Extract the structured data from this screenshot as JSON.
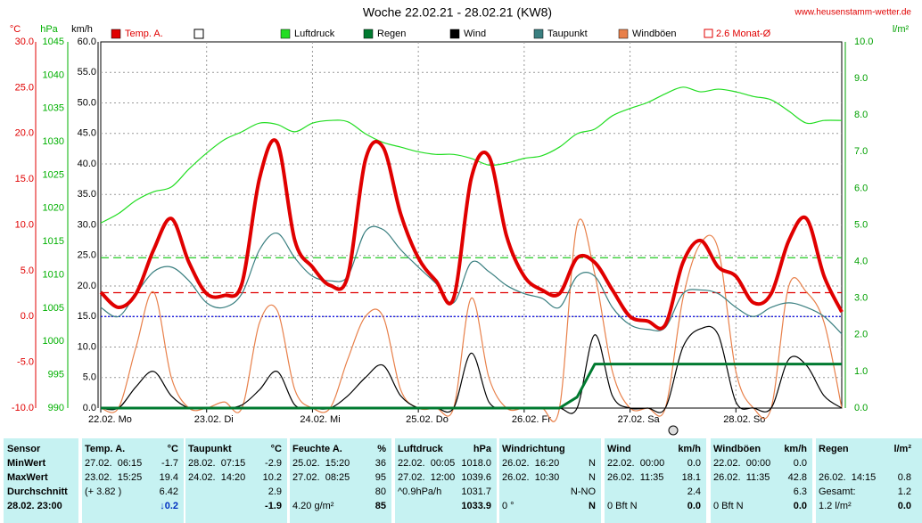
{
  "chart_data": {
    "type": "line",
    "title": "Woche 22.02.21 - 28.02.21 (KW8)",
    "source": "www.heusenstamm-wetter.de",
    "xlim": [
      0,
      168
    ],
    "xticks": [
      {
        "value": 0,
        "label": "22.02. Mo"
      },
      {
        "value": 24,
        "label": "23.02. Di"
      },
      {
        "value": 48,
        "label": "24.02. Mi"
      },
      {
        "value": 72,
        "label": "25.02. Do"
      },
      {
        "value": 96,
        "label": "26.02. Fr"
      },
      {
        "value": 120,
        "label": "27.02. Sa"
      },
      {
        "value": 144,
        "label": "28.02. So"
      }
    ],
    "grid": true,
    "axes": {
      "temp": {
        "label": "°C",
        "color": "#e00000",
        "lim": [
          -10,
          30
        ],
        "ticks": [
          {
            "value": 30,
            "label": "30.0"
          },
          {
            "value": 25,
            "label": "25.0"
          },
          {
            "value": 20,
            "label": "20.0"
          },
          {
            "value": 15,
            "label": "15.0"
          },
          {
            "value": 10,
            "label": "10.0"
          },
          {
            "value": 5,
            "label": "5.0"
          },
          {
            "value": 0,
            "label": "0.0"
          },
          {
            "value": -5,
            "label": "-5.0"
          },
          {
            "value": -10,
            "label": "-10.0"
          }
        ]
      },
      "pressure": {
        "label": "hPa",
        "color": "#00b000",
        "lim": [
          990,
          1045
        ],
        "ticks": [
          1045,
          1040,
          1035,
          1030,
          1025,
          1020,
          1015,
          1010,
          1005,
          1000,
          995,
          990
        ]
      },
      "wind": {
        "label": "km/h",
        "color": "#000000",
        "lim": [
          0,
          60
        ],
        "ticks": [
          {
            "value": 60,
            "label": "60.0"
          },
          {
            "value": 55,
            "label": "55.0"
          },
          {
            "value": 50,
            "label": "50.0"
          },
          {
            "value": 45,
            "label": "45.0"
          },
          {
            "value": 40,
            "label": "40.0"
          },
          {
            "value": 35,
            "label": "35.0"
          },
          {
            "value": 30,
            "label": "30.0"
          },
          {
            "value": 25,
            "label": "25.0"
          },
          {
            "value": 20,
            "label": "20.0"
          },
          {
            "value": 15,
            "label": "15.0"
          },
          {
            "value": 10,
            "label": "10.0"
          },
          {
            "value": 5,
            "label": "5.0"
          },
          {
            "value": 0,
            "label": "0.0"
          }
        ]
      },
      "rain": {
        "label": "l/m²",
        "color": "#00a000",
        "lim": [
          0,
          10
        ],
        "ticks": [
          {
            "value": 10,
            "label": "10.0"
          },
          {
            "value": 9,
            "label": "9.0"
          },
          {
            "value": 8,
            "label": "8.0"
          },
          {
            "value": 7,
            "label": "7.0"
          },
          {
            "value": 6,
            "label": "6.0"
          },
          {
            "value": 5,
            "label": "5.0"
          },
          {
            "value": 4,
            "label": "4.0"
          },
          {
            "value": 3,
            "label": "3.0"
          },
          {
            "value": 2,
            "label": "2.0"
          },
          {
            "value": 1,
            "label": "1.0"
          },
          {
            "value": 0,
            "label": "0.0"
          }
        ]
      }
    },
    "x": [
      0,
      4,
      8,
      12,
      16,
      20,
      24,
      28,
      32,
      36,
      40,
      44,
      48,
      52,
      56,
      60,
      64,
      68,
      72,
      76,
      80,
      84,
      88,
      92,
      96,
      100,
      104,
      108,
      112,
      116,
      120,
      124,
      128,
      132,
      136,
      140,
      144,
      148,
      152,
      156,
      160,
      164,
      168
    ],
    "series": [
      {
        "name": "Temp. A.",
        "color": "#e00000",
        "axis": "temp",
        "values": [
          2.65,
          1.0,
          2.5,
          7.3,
          10.7,
          5.9,
          2.5,
          2.3,
          3.6,
          15.1,
          19.0,
          8.3,
          5.4,
          3.4,
          4.4,
          17.1,
          18.5,
          11.2,
          6.4,
          3.9,
          2.0,
          15.1,
          17.5,
          8.8,
          4.4,
          2.9,
          2.5,
          6.4,
          5.9,
          2.9,
          0.0,
          -0.5,
          -0.9,
          5.9,
          8.3,
          5.4,
          4.4,
          1.5,
          2.5,
          8.3,
          10.7,
          4.4,
          0.5
        ]
      },
      {
        "name": "Luftdruck",
        "color": "#22dd22",
        "axis": "pressure",
        "values": [
          1017.8,
          1019.2,
          1021.2,
          1022.5,
          1023.2,
          1025.9,
          1028.3,
          1030.3,
          1031.5,
          1032.8,
          1032.6,
          1031.5,
          1032.8,
          1033.2,
          1033.0,
          1031.2,
          1029.9,
          1029.2,
          1028.5,
          1028.1,
          1028.1,
          1027.5,
          1026.5,
          1026.8,
          1027.5,
          1027.9,
          1029.2,
          1031.2,
          1031.9,
          1033.9,
          1035.0,
          1035.9,
          1037.2,
          1038.2,
          1037.5,
          1037.9,
          1037.5,
          1036.8,
          1036.3,
          1034.6,
          1032.8,
          1033.2,
          1033.2
        ]
      },
      {
        "name": "Regen",
        "color": "#007a30",
        "axis": "rain",
        "values": [
          0,
          0,
          0,
          0,
          0,
          0,
          0,
          0,
          0,
          0,
          0,
          0,
          0,
          0,
          0,
          0,
          0,
          0,
          0,
          0,
          0,
          0,
          0,
          0,
          0,
          0,
          0,
          0.3,
          1.2,
          1.2,
          1.2,
          1.2,
          1.2,
          1.2,
          1.2,
          1.2,
          1.2,
          1.2,
          1.2,
          1.2,
          1.2,
          1.2,
          1.2
        ]
      },
      {
        "name": "Wind",
        "color": "#000000",
        "axis": "wind",
        "values": [
          0,
          0,
          3.5,
          6,
          2,
          0,
          0,
          0,
          0.5,
          3,
          6,
          0.5,
          0,
          0,
          2,
          5,
          7,
          2,
          0,
          0,
          0,
          9,
          1,
          0,
          0,
          0,
          0,
          0,
          12,
          2,
          0,
          0,
          0,
          10,
          13,
          12,
          1,
          0,
          0,
          8,
          7,
          2,
          0
        ]
      },
      {
        "name": "Taupunkt",
        "color": "#3a7f80",
        "axis": "temp",
        "values": [
          1.0,
          0.0,
          2.5,
          4.9,
          5.4,
          3.9,
          1.5,
          1.0,
          2.5,
          7.3,
          9.1,
          6.4,
          4.4,
          3.9,
          4.4,
          9.3,
          9.5,
          7.3,
          5.4,
          3.6,
          1.5,
          5.9,
          4.9,
          3.4,
          2.5,
          2.0,
          1.0,
          4.4,
          4.4,
          1.0,
          -0.9,
          -1.4,
          -1.2,
          2.5,
          2.9,
          2.5,
          1.0,
          0.0,
          1.0,
          1.5,
          1.0,
          0.0,
          -1.9
        ]
      },
      {
        "name": "Windböen",
        "color": "#e8804a",
        "axis": "wind",
        "values": [
          0,
          0,
          10,
          19,
          5,
          0,
          0,
          1,
          0,
          14,
          16,
          3,
          0,
          0,
          8,
          15,
          15,
          3,
          0,
          0,
          0,
          18,
          5,
          0,
          0,
          0,
          0,
          30,
          22,
          6,
          0,
          0,
          0,
          18,
          27,
          26,
          6,
          0,
          0,
          20,
          19,
          14,
          0
        ]
      }
    ],
    "reference_lines": [
      {
        "label": "2.6 Monat-Ø",
        "value": 2.6,
        "axis": "temp",
        "color": "#e00000",
        "style": "dashed"
      },
      {
        "value": 6.42,
        "axis": "temp",
        "color": "#22cc22",
        "style": "dashed"
      },
      {
        "value": 0,
        "axis": "temp",
        "color": "#0000e0",
        "style": "dotted"
      }
    ]
  },
  "table": {
    "row_labels": [
      "Sensor",
      "MinWert",
      "MaxWert",
      "Durchschnitt",
      "28.02. 23:00"
    ],
    "columns": [
      {
        "title": "Temp. A.",
        "unit": "°C",
        "rows": [
          {
            "left": "27.02.  06:15",
            "right": "-1.7"
          },
          {
            "left": "23.02.  15:25",
            "right": "19.4"
          },
          {
            "left": "(+ 3.82 )",
            "right": "6.42"
          },
          {
            "right": "↓0.2"
          }
        ]
      },
      {
        "title": "Taupunkt",
        "unit": "°C",
        "rows": [
          {
            "left": "28.02.  07:15",
            "right": "-2.9"
          },
          {
            "left": "24.02.  14:20",
            "right": "10.2"
          },
          {
            "right": "2.9"
          },
          {
            "right": "-1.9"
          }
        ]
      },
      {
        "title": "Feuchte A.",
        "unit": "%",
        "rows": [
          {
            "left": "25.02.  15:20",
            "right": "36"
          },
          {
            "left": "27.02.  08:25",
            "right": "95"
          },
          {
            "right": "80"
          },
          {
            "left": "4.20 g/m²",
            "right": "85"
          }
        ]
      },
      {
        "title": "Luftdruck",
        "unit": "hPa",
        "rows": [
          {
            "left": "22.02.  00:05",
            "right": "1018.0"
          },
          {
            "left": "27.02.  12:00",
            "right": "1039.6"
          },
          {
            "left": "^0.9hPa/h",
            "right": "1031.7"
          },
          {
            "right": "1033.9"
          }
        ]
      },
      {
        "title": "Windrichtung",
        "rows": [
          {
            "left": "26.02.  16:20",
            "right": "N"
          },
          {
            "left": "26.02.  10:30",
            "right": "N"
          },
          {
            "right": "N-NO"
          },
          {
            "left": "0 °",
            "right": "N"
          }
        ]
      },
      {
        "title": "Wind",
        "unit": "km/h",
        "rows": [
          {
            "left": "22.02.  00:00",
            "right": "0.0"
          },
          {
            "left": "26.02.  11:35",
            "right": "18.1"
          },
          {
            "right": "2.4"
          },
          {
            "left": "0 Bft N",
            "right": "0.0"
          }
        ]
      },
      {
        "title": "Windböen",
        "unit": "km/h",
        "rows": [
          {
            "left": "22.02.  00:00",
            "right": "0.0"
          },
          {
            "left": "26.02.  11:35",
            "right": "42.8"
          },
          {
            "right": "6.3"
          },
          {
            "left": "0 Bft N",
            "right": "0.0"
          }
        ]
      },
      {
        "title": "Regen",
        "unit": "l/m²",
        "rows": [
          null,
          {
            "left": "26.02.  14:15",
            "right": "0.8"
          },
          {
            "left": "Gesamt:",
            "right": "1.2"
          },
          {
            "left": "1.2 l/m²",
            "right": "0.0"
          }
        ]
      }
    ]
  }
}
